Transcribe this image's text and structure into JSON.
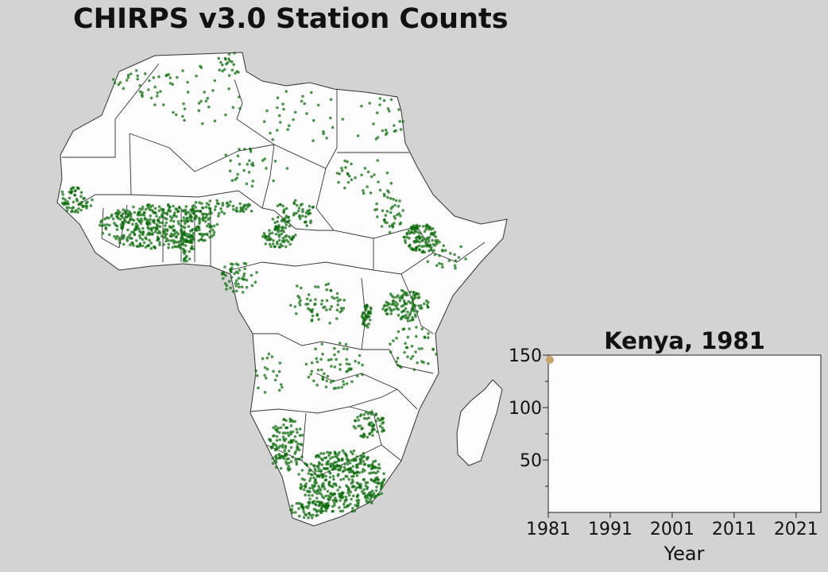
{
  "title": "CHIRPS v3.0 Station Counts",
  "colors": {
    "background": "#d3d3d3",
    "land": "#fcfcfc",
    "border": "#333333",
    "station": "#0b6b0b",
    "marker": "#c8a86a"
  },
  "map": {
    "region": "Africa",
    "legend": "none"
  },
  "chart_data": {
    "type": "line",
    "title": "Kenya, 1981",
    "xlabel": "Year",
    "ylabel": "",
    "xlim": [
      1981,
      2025
    ],
    "ylim": [
      0,
      150
    ],
    "xticks": [
      1981,
      1991,
      2001,
      2011,
      2021
    ],
    "yticks": [
      50,
      100,
      150
    ],
    "grid": false,
    "series": [
      {
        "x": [
          1981
        ],
        "y": [
          147
        ]
      }
    ]
  }
}
